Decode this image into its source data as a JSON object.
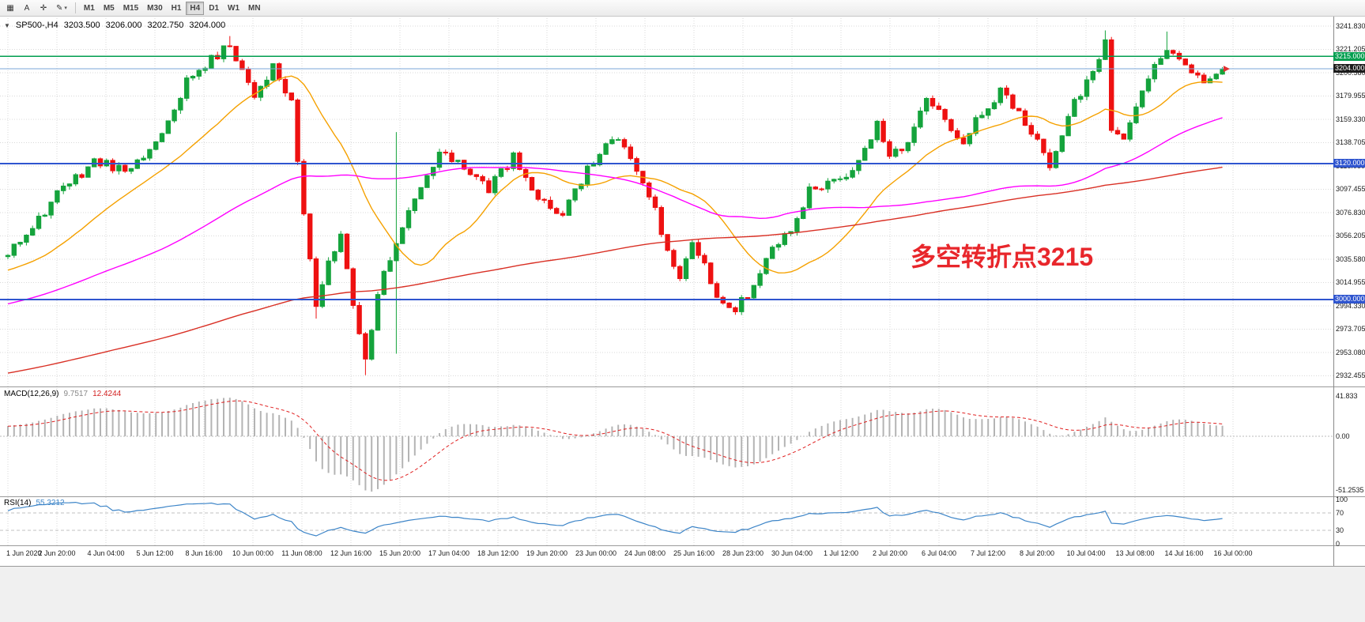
{
  "toolbar": {
    "icons": [
      {
        "name": "templates",
        "glyph": "▦"
      },
      {
        "name": "text",
        "glyph": "A"
      },
      {
        "name": "crosshair",
        "glyph": "✛"
      },
      {
        "name": "draw",
        "glyph": "✎"
      }
    ],
    "caret": "▾",
    "timeframes": [
      "M1",
      "M5",
      "M15",
      "M30",
      "H1",
      "H4",
      "D1",
      "W1",
      "MN"
    ],
    "active_timeframe": "H4"
  },
  "chart_header": {
    "expander": "▼",
    "symbol": "SP500-,H4",
    "open": "3203.500",
    "high": "3206.000",
    "low": "3202.750",
    "close": "3204.000"
  },
  "macd_header": {
    "label": "MACD(12,26,9)",
    "main": "9.7517",
    "signal": "12.4244"
  },
  "rsi_header": {
    "label": "RSI(14)",
    "value": "55.3212"
  },
  "chart_data": {
    "type": "candlestick",
    "symbol": "SP500-",
    "timeframe": "H4",
    "ohlc_current": {
      "open": 3203.5,
      "high": 3206.0,
      "low": 3202.75,
      "close": 3204.0
    },
    "current_price": 3204.0,
    "y_axis_ticks": [
      3241.83,
      3221.205,
      3200.58,
      3179.955,
      3159.33,
      3138.705,
      3118.08,
      3097.455,
      3076.83,
      3056.205,
      3035.58,
      3014.955,
      2994.33,
      2973.705,
      2953.08,
      2932.455
    ],
    "x_axis_labels": [
      "1 Jun 2020",
      "2 Jun 20:00",
      "4 Jun 04:00",
      "5 Jun 12:00",
      "8 Jun 16:00",
      "10 Jun 00:00",
      "11 Jun 08:00",
      "12 Jun 16:00",
      "15 Jun 20:00",
      "17 Jun 04:00",
      "18 Jun 12:00",
      "19 Jun 20:00",
      "23 Jun 00:00",
      "24 Jun 08:00",
      "25 Jun 16:00",
      "28 Jun 23:00",
      "30 Jun 04:00",
      "1 Jul 12:00",
      "2 Jul 20:00",
      "6 Jul 04:00",
      "7 Jul 12:00",
      "8 Jul 20:00",
      "10 Jul 04:00",
      "13 Jul 08:00",
      "14 Jul 16:00",
      "16 Jul 00:00"
    ],
    "levels": [
      {
        "price": 3215.0,
        "label": "3215.000",
        "color": "#009e4f",
        "tag_bg": "#009e4f",
        "width": 1.5,
        "role": "resistance-line"
      },
      {
        "price": 3204.0,
        "label": "3204.000",
        "color": "#7ba7d9",
        "tag_bg": "#1c1c1c",
        "width": 1,
        "role": "current-price-line"
      },
      {
        "price": 3120.0,
        "label": "3120.000",
        "color": "#2f55cf",
        "tag_bg": "#2f55cf",
        "width": 2,
        "role": "support-line"
      },
      {
        "price": 3000.0,
        "label": "3000.000",
        "color": "#2f55cf",
        "tag_bg": "#2f55cf",
        "width": 2,
        "role": "support-line"
      }
    ],
    "moving_averages": [
      {
        "period": 20,
        "color": "#f5a100"
      },
      {
        "period": 68,
        "color": "#ff00ff"
      },
      {
        "period": 200,
        "color": "#d93025"
      }
    ],
    "indicators": [
      {
        "name": "MACD",
        "params": "12,26,9",
        "main_value": 9.7517,
        "signal_value": 12.4244,
        "axis": [
          "41.833",
          "0.00",
          "-51.2535"
        ]
      },
      {
        "name": "RSI",
        "params": "14",
        "value": 55.3212,
        "axis": [
          100,
          70,
          30,
          0
        ],
        "levels": [
          70,
          30
        ]
      }
    ],
    "annotation": {
      "text": "多空转折点3215",
      "color": "#e8262b"
    },
    "colors": {
      "candle_up": "#15a33c",
      "candle_down": "#ee1111",
      "macd_hist": "#b4b4b4",
      "macd_signal": "#e02020",
      "rsi_line": "#3d85c8",
      "grid": "#d9d9d9"
    },
    "bars_visible": 198,
    "prehistory_anchors": [
      [
        -200,
        2845
      ],
      [
        -160,
        2880
      ],
      [
        -120,
        2915
      ],
      [
        -80,
        2950
      ],
      [
        -50,
        2975
      ],
      [
        -25,
        3005
      ],
      [
        -8,
        3028
      ],
      [
        -1,
        3036
      ]
    ],
    "price_anchors": [
      [
        0,
        3040
      ],
      [
        4,
        3066
      ],
      [
        8,
        3092
      ],
      [
        14,
        3122
      ],
      [
        20,
        3112
      ],
      [
        24,
        3140
      ],
      [
        29,
        3192
      ],
      [
        33,
        3212
      ],
      [
        36,
        3226
      ],
      [
        40,
        3182
      ],
      [
        43,
        3205
      ],
      [
        46,
        3172
      ],
      [
        48,
        3075
      ],
      [
        50,
        2996
      ],
      [
        52,
        3030
      ],
      [
        54,
        3058
      ],
      [
        56,
        2998
      ],
      [
        58,
        2946
      ],
      [
        60,
        3008
      ],
      [
        63,
        3052
      ],
      [
        66,
        3088
      ],
      [
        70,
        3128
      ],
      [
        74,
        3119
      ],
      [
        78,
        3098
      ],
      [
        82,
        3126
      ],
      [
        86,
        3086
      ],
      [
        90,
        3076
      ],
      [
        94,
        3116
      ],
      [
        98,
        3142
      ],
      [
        101,
        3128
      ],
      [
        104,
        3095
      ],
      [
        107,
        3042
      ],
      [
        109,
        3020
      ],
      [
        111,
        3048
      ],
      [
        113,
        3028
      ],
      [
        115,
        2999
      ],
      [
        118,
        2991
      ],
      [
        121,
        3012
      ],
      [
        124,
        3046
      ],
      [
        127,
        3062
      ],
      [
        130,
        3096
      ],
      [
        133,
        3104
      ],
      [
        136,
        3112
      ],
      [
        139,
        3130
      ],
      [
        141,
        3154
      ],
      [
        143,
        3128
      ],
      [
        146,
        3140
      ],
      [
        149,
        3176
      ],
      [
        152,
        3158
      ],
      [
        155,
        3141
      ],
      [
        158,
        3166
      ],
      [
        161,
        3184
      ],
      [
        164,
        3168
      ],
      [
        167,
        3139
      ],
      [
        169,
        3121
      ],
      [
        173,
        3177
      ],
      [
        176,
        3198
      ],
      [
        178,
        3231
      ],
      [
        179,
        3153
      ],
      [
        181,
        3146
      ],
      [
        183,
        3168
      ],
      [
        185,
        3196
      ],
      [
        188,
        3222
      ],
      [
        191,
        3206
      ],
      [
        194,
        3192
      ],
      [
        197,
        3204
      ]
    ],
    "wick_events": [
      {
        "bar": 36,
        "high": 3233
      },
      {
        "bar": 50,
        "low": 2983
      },
      {
        "bar": 58,
        "low": 2933
      },
      {
        "bar": 63,
        "high": 3148,
        "low": 2952
      },
      {
        "bar": 169,
        "low": 3114
      },
      {
        "bar": 178,
        "high": 3238
      },
      {
        "bar": 188,
        "high": 3237
      }
    ],
    "noise": {
      "seed": 11,
      "close_amp": 4.5,
      "wick_amp": 3.5
    }
  }
}
